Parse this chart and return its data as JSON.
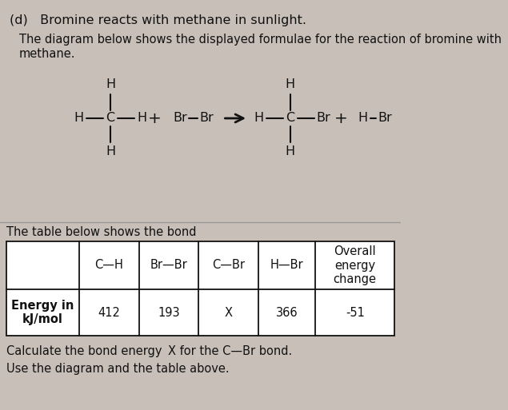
{
  "bg_color": "#c8c0b8",
  "paper_color": "#e8e4de",
  "text_color": "#111111",
  "line_color": "#111111",
  "title": "(d)   Bromine reacts with methane in sunlight.",
  "sub1": "The diagram below shows the displayed formulae for the reaction of bromine with",
  "sub2": "methane.",
  "table_intro": "The table below shows the bond",
  "col_headers": [
    "",
    "C—H",
    "Br—Br",
    "C—Br",
    "H—Br",
    "Overall\nenergy\nchange"
  ],
  "row_label": "Energy in\nkJ/mol",
  "row_values": [
    "412",
    "193",
    "X",
    "366",
    "-51"
  ],
  "calc_text": "Calculate the bond energy  X for the C—Br bond.",
  "use_text": "Use the diagram and the table above.",
  "fs_title": 11.5,
  "fs_body": 10.5,
  "fs_formula": 11.5,
  "fs_table": 10.5
}
